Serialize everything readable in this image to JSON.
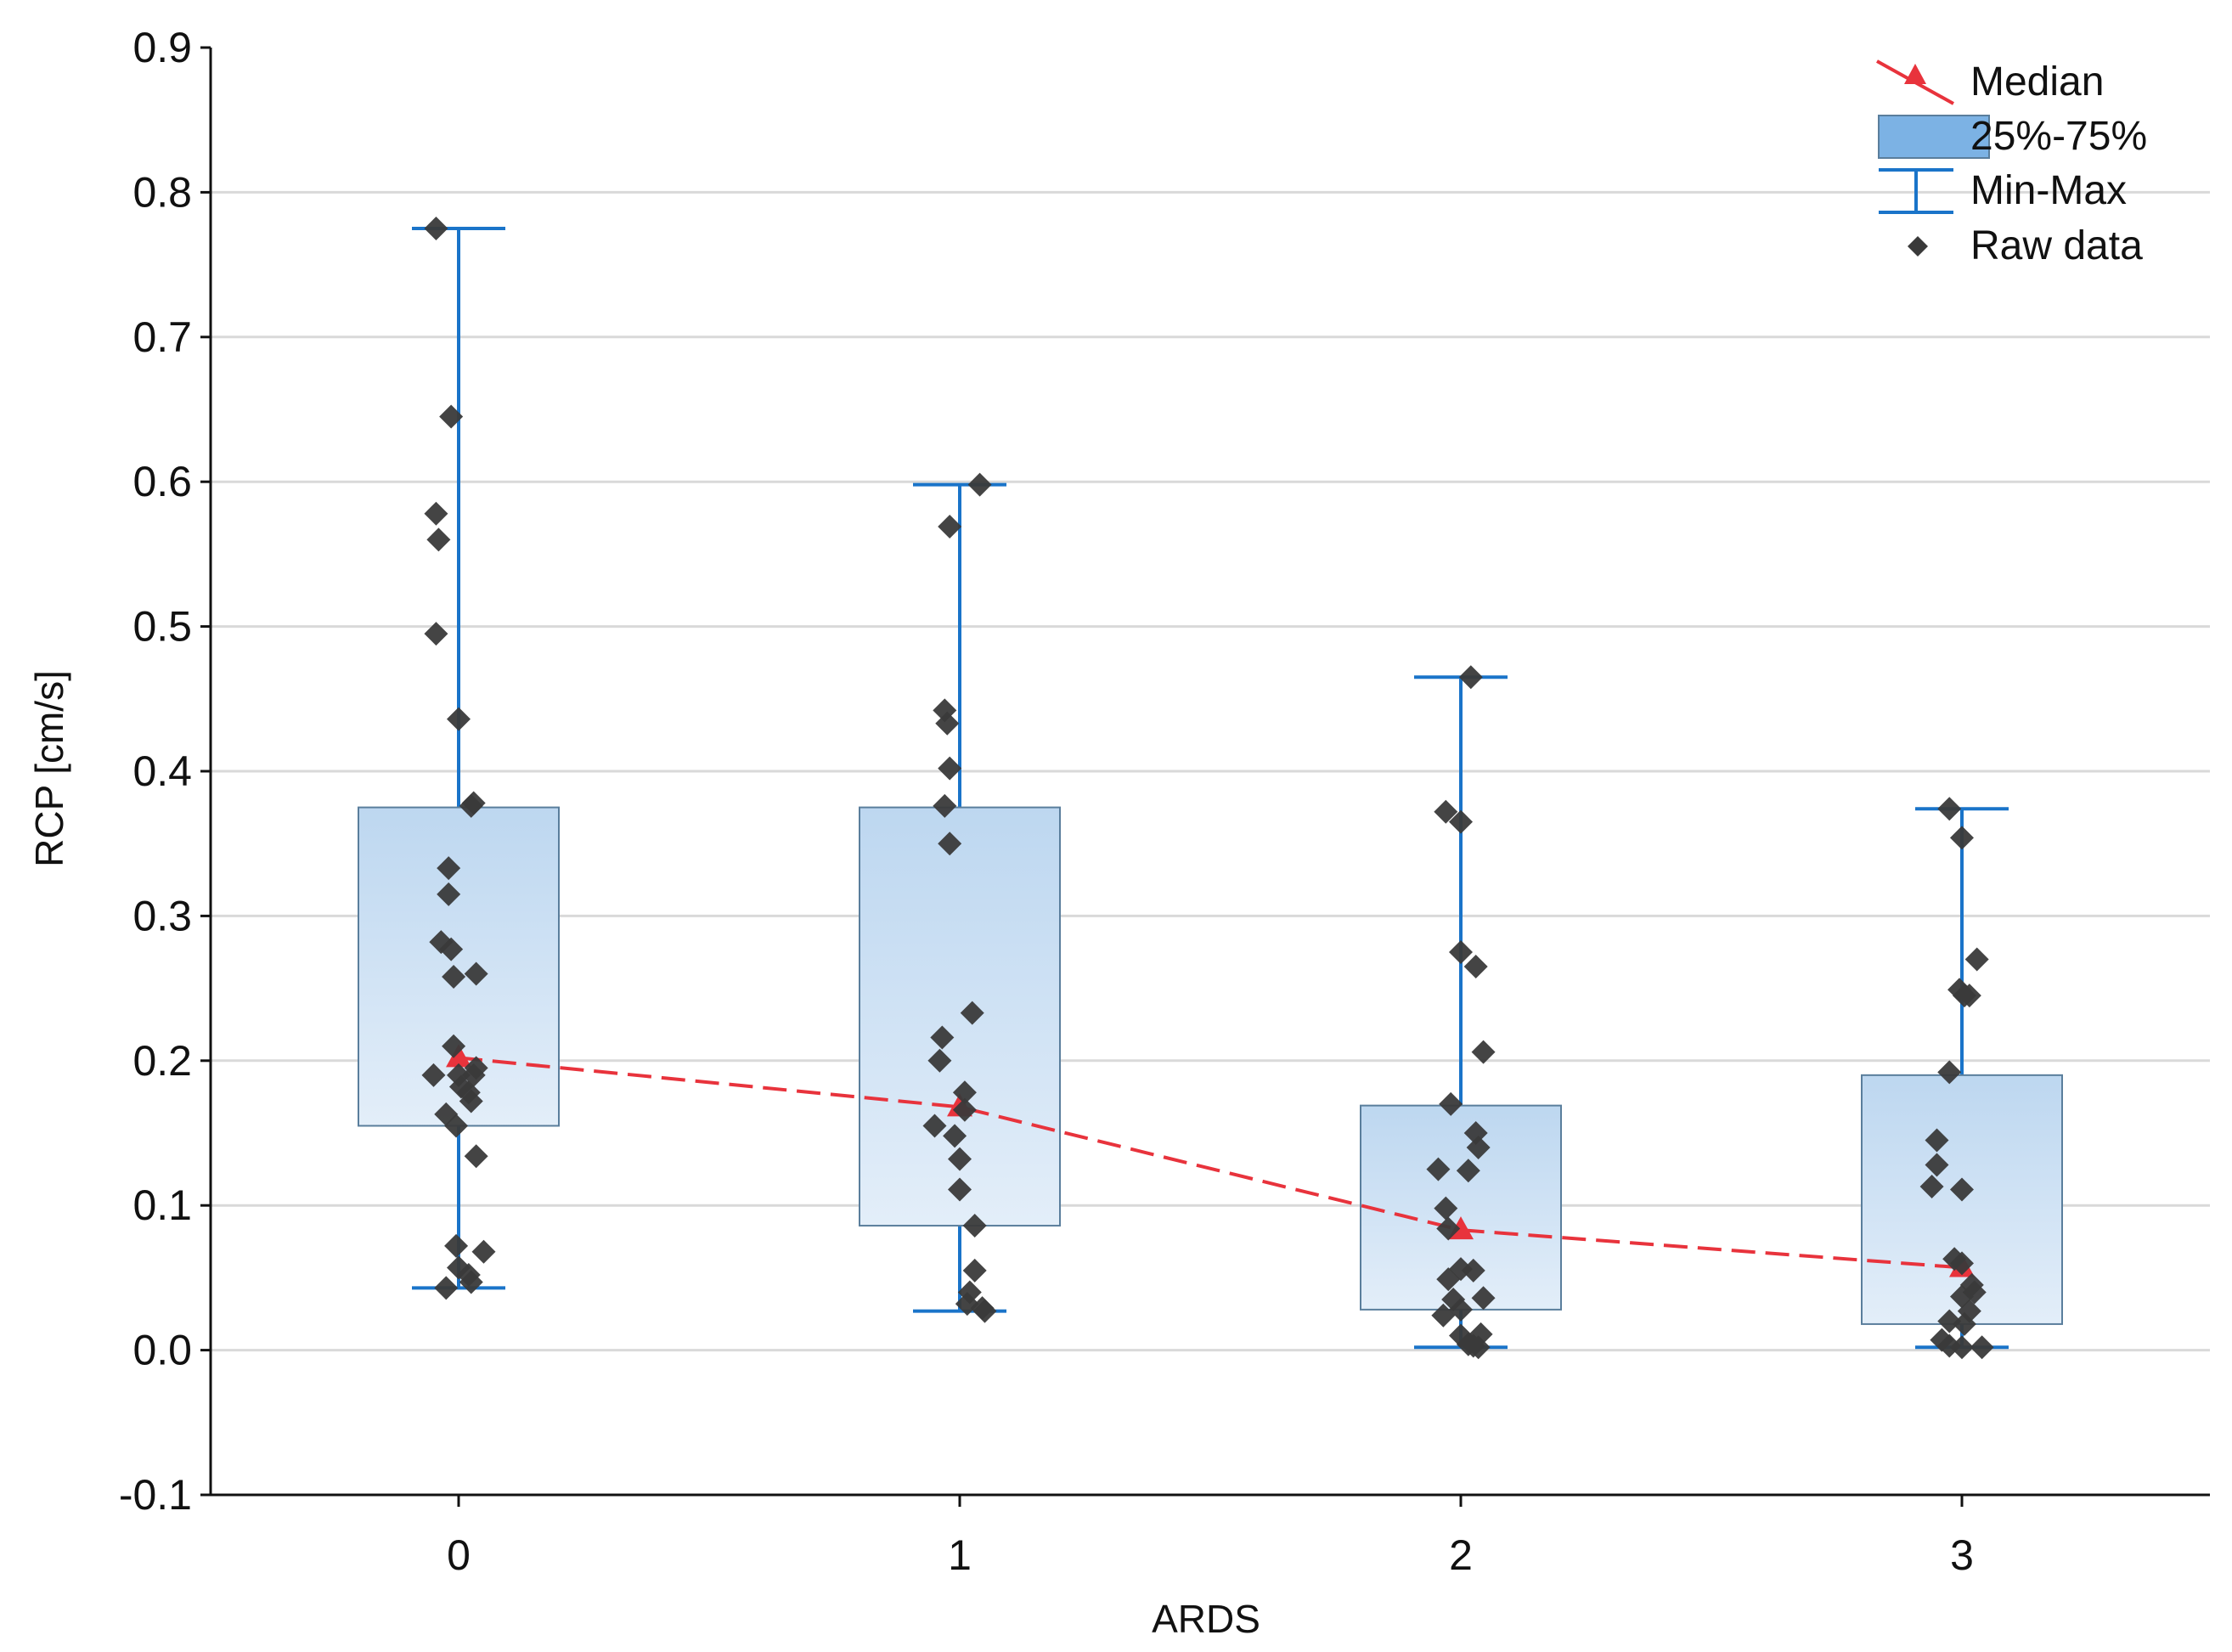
{
  "chart_data": {
    "type": "box",
    "title": "",
    "xlabel": "ARDS",
    "ylabel": "RCP [cm/s]",
    "ylim": [
      -0.1,
      0.9
    ],
    "yticks": [
      "-0.1",
      "0.0",
      "0.1",
      "0.2",
      "0.3",
      "0.4",
      "0.5",
      "0.6",
      "0.7",
      "0.8",
      "0.9"
    ],
    "categories": [
      "0",
      "1",
      "2",
      "3"
    ],
    "grid": true,
    "legend_position": "top-right",
    "legend": {
      "median": "Median",
      "iqr": "25%-75%",
      "minmax": "Min-Max",
      "raw": "Raw data"
    },
    "colors": {
      "box_fill_top": "#bdd7f0",
      "box_fill_bottom": "#e3eef9",
      "legend_box": "#7cb2e4",
      "box_border": "#5a7e9c",
      "whisker": "#1a74c9",
      "median": "#e8333c",
      "raw": "#3a3a3a",
      "grid": "#d9d9d9"
    },
    "groups": [
      {
        "category": "0",
        "min": 0.043,
        "q1": 0.155,
        "median": 0.202,
        "q3": 0.375,
        "max": 0.775,
        "raw": [
          [
            -0.09,
            0.775
          ],
          [
            -0.03,
            0.645
          ],
          [
            -0.09,
            0.578
          ],
          [
            -0.08,
            0.56
          ],
          [
            -0.09,
            0.495
          ],
          [
            0.0,
            0.436
          ],
          [
            0.06,
            0.378
          ],
          [
            0.05,
            0.376
          ],
          [
            -0.04,
            0.333
          ],
          [
            -0.04,
            0.315
          ],
          [
            -0.07,
            0.282
          ],
          [
            -0.03,
            0.277
          ],
          [
            0.07,
            0.26
          ],
          [
            -0.02,
            0.258
          ],
          [
            -0.02,
            0.21
          ],
          [
            -0.1,
            0.19
          ],
          [
            0.07,
            0.195
          ],
          [
            0.06,
            0.19
          ],
          [
            0.0,
            0.19
          ],
          [
            0.01,
            0.182
          ],
          [
            0.04,
            0.178
          ],
          [
            0.05,
            0.172
          ],
          [
            -0.05,
            0.163
          ],
          [
            -0.01,
            0.155
          ],
          [
            0.07,
            0.134
          ],
          [
            -0.01,
            0.072
          ],
          [
            0.1,
            0.068
          ],
          [
            0.0,
            0.057
          ],
          [
            0.04,
            0.052
          ],
          [
            0.05,
            0.047
          ],
          [
            -0.05,
            0.043
          ]
        ]
      },
      {
        "category": "1",
        "min": 0.027,
        "q1": 0.086,
        "median": 0.168,
        "q3": 0.375,
        "max": 0.598,
        "raw": [
          [
            0.08,
            0.598
          ],
          [
            -0.04,
            0.569
          ],
          [
            -0.06,
            0.442
          ],
          [
            -0.05,
            0.433
          ],
          [
            -0.04,
            0.402
          ],
          [
            -0.06,
            0.376
          ],
          [
            -0.04,
            0.35
          ],
          [
            0.05,
            0.233
          ],
          [
            -0.07,
            0.216
          ],
          [
            -0.08,
            0.2
          ],
          [
            0.02,
            0.178
          ],
          [
            0.02,
            0.166
          ],
          [
            -0.1,
            0.155
          ],
          [
            -0.02,
            0.148
          ],
          [
            0.0,
            0.132
          ],
          [
            0.0,
            0.111
          ],
          [
            0.06,
            0.086
          ],
          [
            0.06,
            0.055
          ],
          [
            0.04,
            0.04
          ],
          [
            0.03,
            0.032
          ],
          [
            0.09,
            0.029
          ],
          [
            0.1,
            0.027
          ]
        ]
      },
      {
        "category": "2",
        "min": 0.002,
        "q1": 0.028,
        "median": 0.083,
        "q3": 0.169,
        "max": 0.465,
        "raw": [
          [
            0.04,
            0.465
          ],
          [
            -0.06,
            0.372
          ],
          [
            0.0,
            0.365
          ],
          [
            0.0,
            0.275
          ],
          [
            0.06,
            0.265
          ],
          [
            0.09,
            0.206
          ],
          [
            -0.04,
            0.17
          ],
          [
            0.06,
            0.15
          ],
          [
            0.07,
            0.14
          ],
          [
            -0.09,
            0.125
          ],
          [
            0.03,
            0.124
          ],
          [
            -0.06,
            0.098
          ],
          [
            -0.05,
            0.084
          ],
          [
            0.0,
            0.056
          ],
          [
            0.05,
            0.055
          ],
          [
            -0.05,
            0.049
          ],
          [
            -0.03,
            0.035
          ],
          [
            0.09,
            0.036
          ],
          [
            0.0,
            0.028
          ],
          [
            -0.07,
            0.024
          ],
          [
            0.0,
            0.01
          ],
          [
            0.08,
            0.011
          ],
          [
            0.03,
            0.004
          ],
          [
            0.05,
            0.003
          ],
          [
            0.07,
            0.002
          ]
        ]
      },
      {
        "category": "3",
        "min": 0.002,
        "q1": 0.018,
        "median": 0.057,
        "q3": 0.19,
        "max": 0.374,
        "raw": [
          [
            -0.05,
            0.374
          ],
          [
            0.0,
            0.354
          ],
          [
            0.06,
            0.27
          ],
          [
            -0.01,
            0.249
          ],
          [
            0.01,
            0.245
          ],
          [
            0.03,
            0.245
          ],
          [
            -0.05,
            0.192
          ],
          [
            -0.1,
            0.145
          ],
          [
            -0.1,
            0.128
          ],
          [
            -0.12,
            0.113
          ],
          [
            0.0,
            0.111
          ],
          [
            -0.03,
            0.063
          ],
          [
            0.0,
            0.06
          ],
          [
            0.04,
            0.045
          ],
          [
            0.05,
            0.04
          ],
          [
            0.0,
            0.037
          ],
          [
            0.03,
            0.027
          ],
          [
            -0.05,
            0.02
          ],
          [
            0.01,
            0.018
          ],
          [
            -0.08,
            0.007
          ],
          [
            -0.05,
            0.003
          ],
          [
            0.0,
            0.002
          ],
          [
            0.08,
            0.002
          ]
        ]
      }
    ]
  }
}
